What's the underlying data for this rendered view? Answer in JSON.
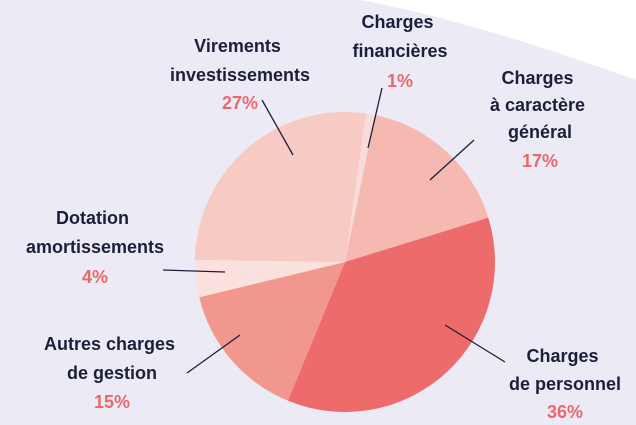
{
  "chart_data": {
    "type": "pie",
    "categories": [
      "Charges financières",
      "Charges à caractère général",
      "Charges de personnel",
      "Autres charges de gestion",
      "Dotation amortissements",
      "Virements investissements"
    ],
    "values": [
      1,
      17,
      36,
      15,
      4,
      27
    ],
    "value_labels": [
      "1%",
      "17%",
      "36%",
      "15%",
      "4%",
      "27%"
    ],
    "colors": [
      "#f8dcd8",
      "#f6b9b1",
      "#ed6b6b",
      "#f1978d",
      "#fbe1dd",
      "#f7cac4"
    ]
  }
}
